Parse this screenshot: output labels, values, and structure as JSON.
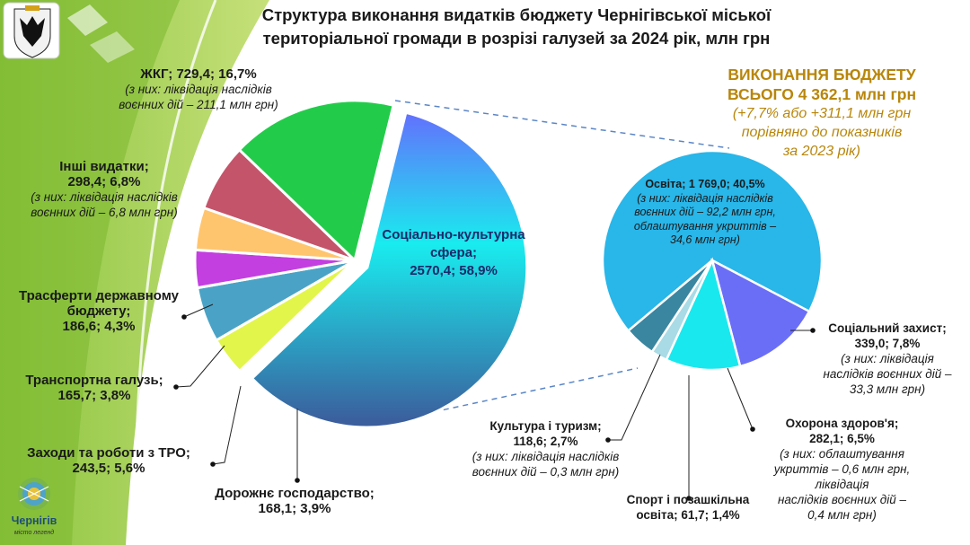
{
  "header": {
    "title": "Структура виконання видатків бюджету Чернігівської міської\nтериторіальної громади в розрізі галузей за 2024 рік, млн грн"
  },
  "total": {
    "line1": "ВИКОНАННЯ БЮДЖЕТУ\nВСЬОГО 4 362,1 млн грн",
    "line2": "(+7,7% або +311,1 млн грн\nпорівняно до показників\nза 2023 рік)"
  },
  "branding": {
    "city_name": "Чернігів",
    "slogan": "місто легенд"
  },
  "labels": {
    "social": "Соціально-культурна\nсфера;\n2570,4; 58,9%",
    "zhkg_main": "ЖКГ;  729,4; 16,7%",
    "zhkg_note": "(з них: ліквідація наслідків\nвоєнних дій – 211,1 млн грн)",
    "other_main": "Інші видатки;\n298,4; 6,8%",
    "other_note": "(з них: ліквідація наслідків\nвоєнних дій – 6,8 млн грн)",
    "transfers_main": "Трасферти державному\nбюджету;\n186,6; 4,3%",
    "transport_main": "Транспортна галузь;\n165,7; 3,8%",
    "tro_main": "Заходи та роботи з ТРО;\n243,5; 5,6%",
    "roads_main": "Дорожнє господарство;\n168,1; 3,9%",
    "education_main": "Освіта; 1 769,0; 40,5%",
    "education_note": "(з них: ліквідація наслідків\nвоєнних дій – 92,2 млн грн,\nоблаштування укриттів –\n34,6 млн грн)",
    "social_protection_main": "Соціальний захист;\n339,0; 7,8%",
    "social_protection_note": "(з них: ліквідація\nнаслідків воєнних дій –\n33,3 млн грн)",
    "health_main": "Охорона здоров'я;\n282,1; 6,5%",
    "health_note": "(з них: облаштування\nукриттів – 0,6 млн грн,\nліквідація\nнаслідків воєнних дій  –\n0,4 млн грн)",
    "sport_main": "Спорт і позашкільна\nосвіта; 61,7; 1,4%",
    "culture_main": "Культура і туризм;\n118,6; 2,7%",
    "culture_note": "(з них: ліквідація наслідків\nвоєнних дій – 0,3 млн грн)"
  },
  "chart_data": [
    {
      "type": "pie",
      "unit": "млн грн",
      "slices": [
        {
          "name": "Соціально-культурна сфера",
          "value": 2570.4,
          "percent": 58.9,
          "color": "#3a5fa8",
          "exploded": true
        },
        {
          "name": "Дорожнє господарство",
          "value": 168.1,
          "percent": 3.9,
          "color": "#e2f54a"
        },
        {
          "name": "Заходи та роботи з ТРО",
          "value": 243.5,
          "percent": 5.6,
          "color": "#4aa3c6"
        },
        {
          "name": "Транспортна галузь",
          "value": 165.7,
          "percent": 3.8,
          "color": "#c33fe0"
        },
        {
          "name": "Трасферти державному бюджету",
          "value": 186.6,
          "percent": 4.3,
          "color": "#ffc56e"
        },
        {
          "name": "Інші видатки",
          "value": 298.4,
          "percent": 6.8,
          "color": "#c4546a"
        },
        {
          "name": "ЖКГ",
          "value": 729.4,
          "percent": 16.7,
          "color": "#22cc4a"
        }
      ]
    },
    {
      "type": "pie",
      "unit": "млн грн",
      "slices": [
        {
          "name": "Освіта",
          "value": 1769.0,
          "percent": 40.5,
          "color": "#29b6e8"
        },
        {
          "name": "Соціальний захист",
          "value": 339.0,
          "percent": 7.8,
          "color": "#6a6ef7"
        },
        {
          "name": "Охорона здоров'я",
          "value": 282.1,
          "percent": 6.5,
          "color": "#19e8ee"
        },
        {
          "name": "Спорт і позашкільна освіта",
          "value": 61.7,
          "percent": 1.4,
          "color": "#a8dbe6"
        },
        {
          "name": "Культура і туризм",
          "value": 118.6,
          "percent": 2.7,
          "color": "#3a86a0"
        }
      ]
    }
  ]
}
